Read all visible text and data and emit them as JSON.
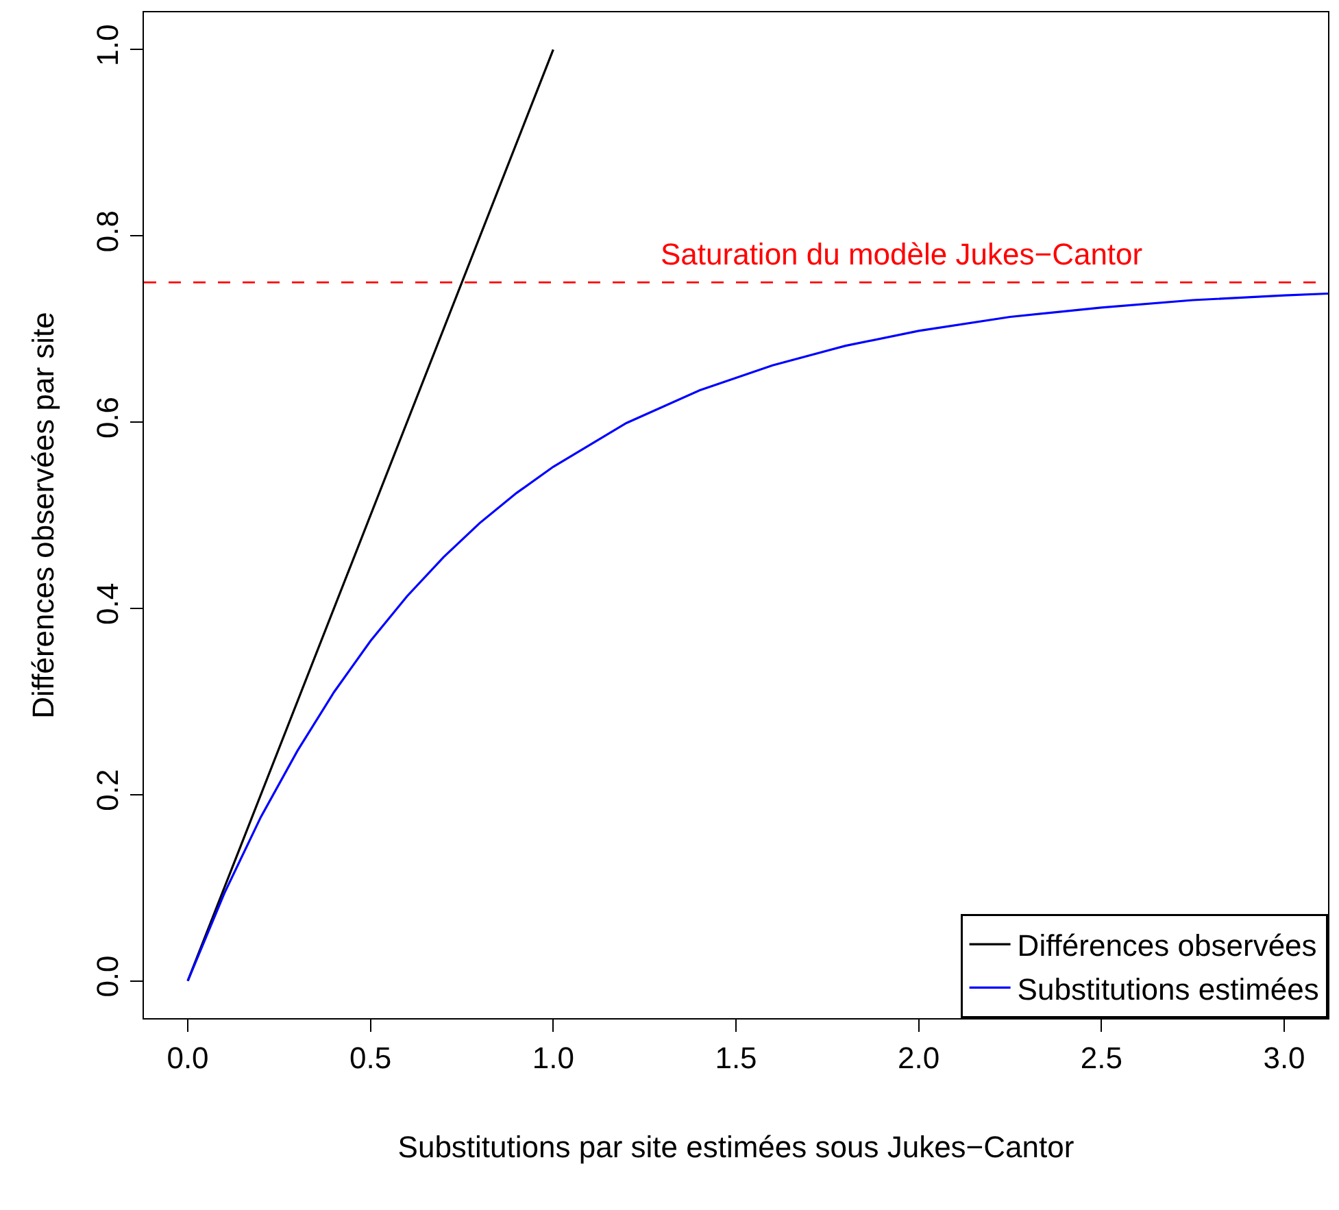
{
  "chart_data": {
    "type": "line",
    "xlabel": "Substitutions par site estimées sous Jukes−Cantor",
    "ylabel": "Différences observées par site",
    "series": [
      {
        "name": "Différences observées",
        "color": "#000000",
        "x": [
          0,
          1
        ],
        "values": [
          0,
          1
        ]
      },
      {
        "name": "Substitutions estimées",
        "color": "#0000ff",
        "x": [
          0,
          0.1,
          0.2,
          0.3,
          0.4,
          0.5,
          0.6,
          0.7,
          0.8,
          0.9,
          1.0,
          1.2,
          1.4,
          1.6,
          1.8,
          2.0,
          2.25,
          2.5,
          2.75,
          3.0,
          3.12
        ],
        "values": [
          0,
          0.094,
          0.176,
          0.247,
          0.31,
          0.365,
          0.413,
          0.455,
          0.492,
          0.524,
          0.552,
          0.599,
          0.634,
          0.661,
          0.682,
          0.698,
          0.713,
          0.723,
          0.731,
          0.736,
          0.738
        ]
      }
    ],
    "ref_lines": [
      {
        "axis": "y",
        "value": 0.75,
        "label": "Saturation du modèle Jukes−Cantor",
        "color": "#ff0000",
        "line_style": "dashed"
      }
    ],
    "xlim": [
      -0.12,
      3.12
    ],
    "xticks": [
      {
        "value": 0,
        "label": "0.0"
      },
      {
        "value": 0.5,
        "label": "0.5"
      },
      {
        "value": 1,
        "label": "1.0"
      },
      {
        "value": 1.5,
        "label": "1.5"
      },
      {
        "value": 2,
        "label": "2.0"
      },
      {
        "value": 2.5,
        "label": "2.5"
      },
      {
        "value": 3,
        "label": "3.0"
      }
    ],
    "ylim": [
      -0.04,
      1.04
    ],
    "yticks": [
      {
        "value": 0,
        "label": "0.0"
      },
      {
        "value": 0.2,
        "label": "0.2"
      },
      {
        "value": 0.4,
        "label": "0.4"
      },
      {
        "value": 0.6,
        "label": "0.6"
      },
      {
        "value": 0.8,
        "label": "0.8"
      },
      {
        "value": 1,
        "label": "1.0"
      }
    ],
    "grid": false,
    "legend": "bottom right",
    "marker": "none",
    "line_style": "solid"
  }
}
